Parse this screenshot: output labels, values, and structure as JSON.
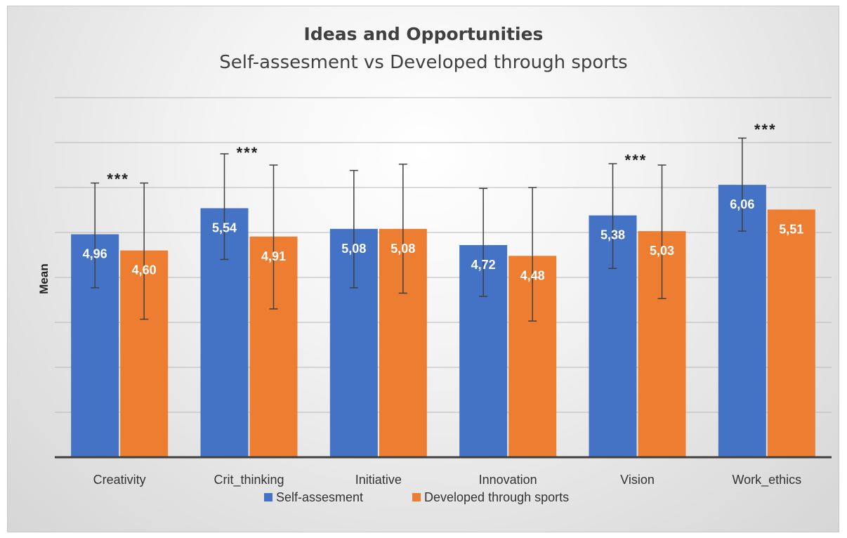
{
  "chart_data": {
    "type": "bar",
    "title": "Ideas and Opportunities",
    "subtitle": "Self-assesment vs Developed through sports",
    "xlabel": "",
    "ylabel": "Mean",
    "ylim": [
      0,
      8
    ],
    "grid": true,
    "legend_position": "bottom",
    "categories": [
      "Creativity",
      "Crit_thinking",
      "Initiative",
      "Innovation",
      "Vision",
      "Work_ethics"
    ],
    "series": [
      {
        "name": "Self-assesment",
        "color": "#4472c4",
        "values": [
          4.96,
          5.54,
          5.08,
          4.72,
          5.38,
          6.06
        ],
        "labels": [
          "4,96",
          "5,54",
          "5,08",
          "4,72",
          "5,38",
          "6,06"
        ],
        "error_low": [
          3.77,
          4.4,
          3.77,
          3.58,
          4.2,
          5.03
        ],
        "error_high": [
          6.1,
          6.75,
          6.38,
          5.98,
          6.53,
          7.1
        ]
      },
      {
        "name": "Developed through sports",
        "color": "#ed7d31",
        "values": [
          4.6,
          4.91,
          5.08,
          4.48,
          5.03,
          5.51
        ],
        "labels": [
          "4,60",
          "4,91",
          "5,08",
          "4,48",
          "5,03",
          "5,51"
        ],
        "error_low": [
          3.07,
          3.3,
          3.65,
          3.03,
          3.53,
          null
        ],
        "error_high": [
          6.1,
          6.5,
          6.52,
          6.0,
          6.5,
          null
        ]
      }
    ],
    "annotations": [
      {
        "category": "Creativity",
        "text": "***"
      },
      {
        "category": "Crit_thinking",
        "text": "***"
      },
      {
        "category": "Vision",
        "text": "***"
      },
      {
        "category": "Work_ethics",
        "text": "***"
      }
    ]
  }
}
